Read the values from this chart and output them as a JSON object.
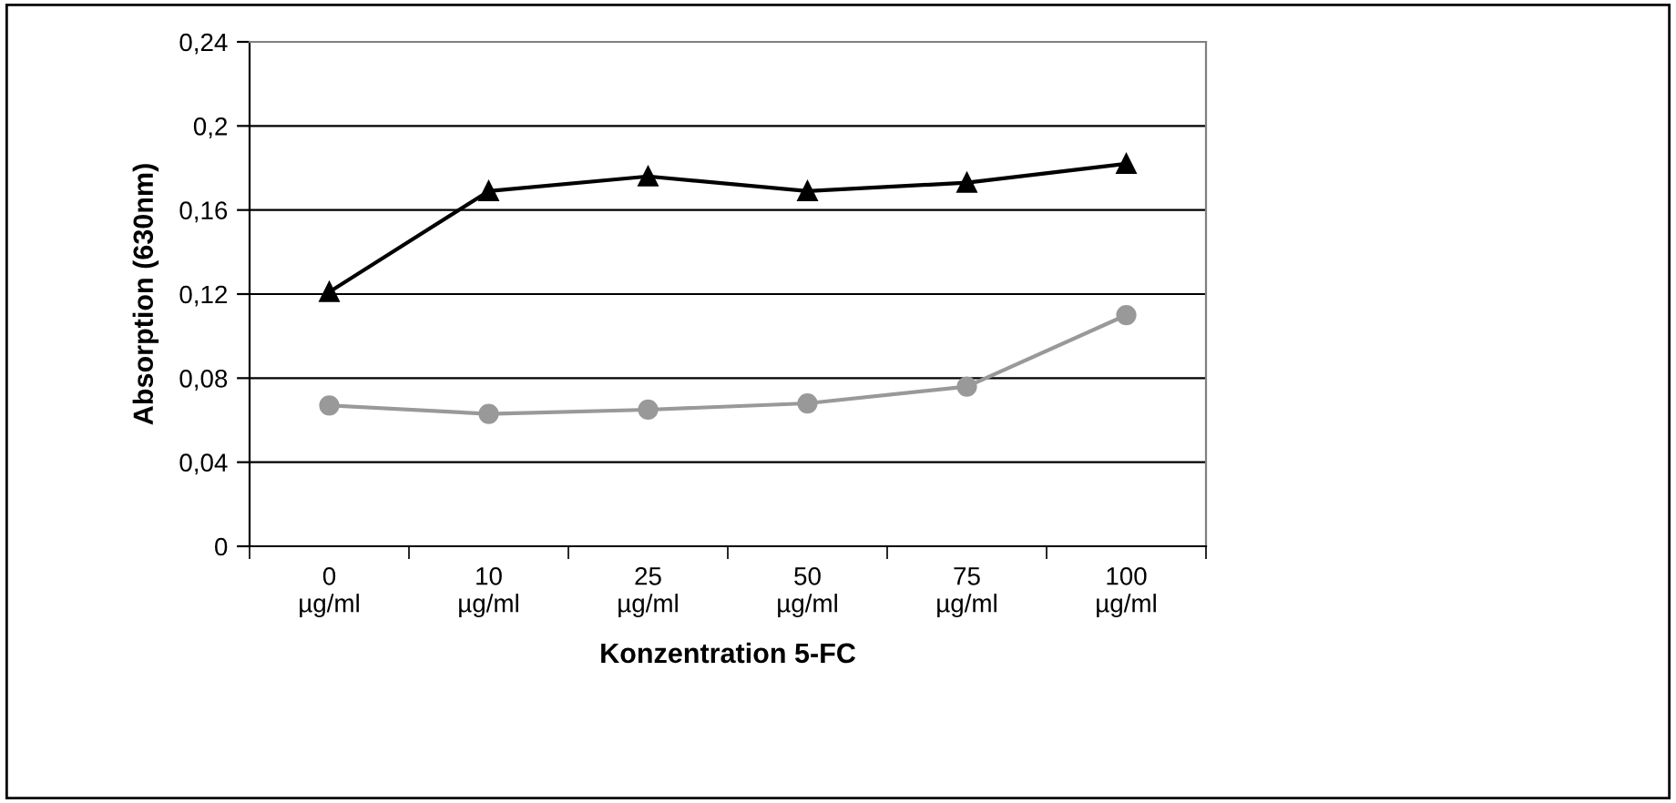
{
  "chart_data": {
    "type": "line",
    "xlabel": "Konzentration 5-FC",
    "ylabel": "Absorption (630nm)",
    "categories": [
      "0\nµg/ml",
      "10\nµg/ml",
      "25\nµg/ml",
      "50\nµg/ml",
      "75\nµg/ml",
      "100\nµg/ml"
    ],
    "series": [
      {
        "color": "#999999",
        "marker": "circle",
        "values": [
          0.067,
          0.063,
          0.065,
          0.068,
          0.076,
          0.11
        ]
      },
      {
        "color": "#000000",
        "marker": "triangle",
        "values": [
          0.121,
          0.169,
          0.176,
          0.169,
          0.173,
          0.182
        ]
      }
    ],
    "ylim": [
      0,
      0.24
    ],
    "yticks": [
      0,
      {
        "value": 0.04,
        "label": "0,04"
      },
      {
        "value": 0.08,
        "label": "0,08"
      },
      {
        "value": 0.12,
        "label": "0,12"
      },
      {
        "value": 0.16,
        "label": "0,16"
      },
      {
        "value": 0.2,
        "label": "0,2"
      },
      {
        "value": 0.24,
        "label": "0,24"
      }
    ],
    "grid": "y"
  }
}
